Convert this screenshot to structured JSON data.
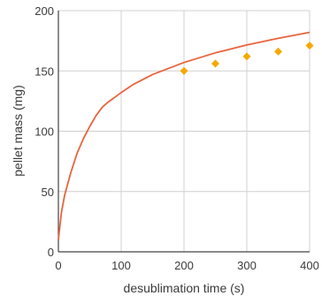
{
  "chart_data": {
    "type": "line",
    "title": "",
    "xlabel": "desublimation time (s)",
    "ylabel": "pellet mass (mg)",
    "xlim": [
      0,
      400
    ],
    "ylim": [
      0,
      200
    ],
    "xticks": [
      0,
      100,
      200,
      300,
      400
    ],
    "yticks": [
      0,
      50,
      100,
      150,
      200
    ],
    "xtick_labels": [
      "0",
      "100",
      "200",
      "300",
      "400"
    ],
    "ytick_labels": [
      "0",
      "50",
      "100",
      "150",
      "200"
    ],
    "grid": true,
    "legend": "none",
    "series": [
      {
        "type": "line",
        "color": "#e8643c",
        "x": [
          0,
          5,
          10,
          20,
          30,
          40,
          50,
          60,
          70,
          80,
          100,
          120,
          150,
          200,
          250,
          300,
          350,
          400
        ],
        "y": [
          10,
          33,
          47,
          66,
          82,
          94,
          104,
          113,
          120,
          124.5,
          132,
          139,
          147,
          157,
          165,
          171.5,
          177,
          182
        ]
      },
      {
        "type": "scatter",
        "color": "#f5a800",
        "marker": "diamond",
        "x": [
          200,
          250,
          300,
          350,
          400
        ],
        "y": [
          150,
          156,
          162,
          166,
          171
        ]
      }
    ]
  }
}
